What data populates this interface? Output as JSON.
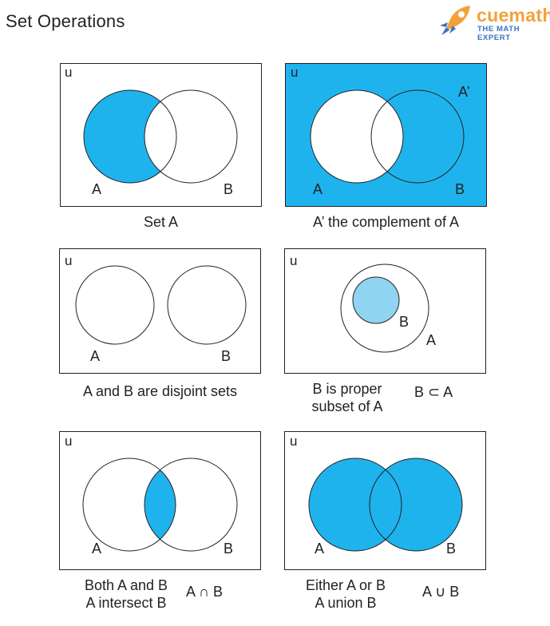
{
  "header": {
    "title": "Set Operations",
    "brand_name": "cuemath",
    "brand_tagline": "THE MATH EXPERT"
  },
  "colors": {
    "fill": "#1fb3ee",
    "fill_light": "#8fd4f0",
    "outline": "#222222",
    "brand_orange": "#f2a23a",
    "brand_blue": "#3a72c4"
  },
  "diagrams": [
    {
      "id": "set-a",
      "universe_label": "u",
      "labels": [
        "A",
        "B"
      ],
      "caption": "Set A",
      "shaded": "A only"
    },
    {
      "id": "complement-a",
      "universe_label": "u",
      "labels": [
        "A",
        "B",
        "A’"
      ],
      "caption": "A’ the complement of A",
      "shaded": "everything outside A"
    },
    {
      "id": "disjoint",
      "universe_label": "u",
      "labels": [
        "A",
        "B"
      ],
      "caption": "A and B are disjoint sets",
      "shaded": "none"
    },
    {
      "id": "subset",
      "universe_label": "u",
      "labels": [
        "B",
        "A"
      ],
      "caption_lines": [
        "B is proper",
        "subset of A"
      ],
      "symbol": "B ⊂ A",
      "shaded": "B"
    },
    {
      "id": "intersection",
      "universe_label": "u",
      "labels": [
        "A",
        "B"
      ],
      "caption_lines": [
        "Both A and B",
        "A intersect B"
      ],
      "symbol": "A ∩ B",
      "shaded": "A ∩ B"
    },
    {
      "id": "union",
      "universe_label": "u",
      "labels": [
        "A",
        "B"
      ],
      "caption_lines": [
        "Either A or B",
        "A union B"
      ],
      "symbol": "A ∪ B",
      "shaded": "A ∪ B"
    }
  ]
}
